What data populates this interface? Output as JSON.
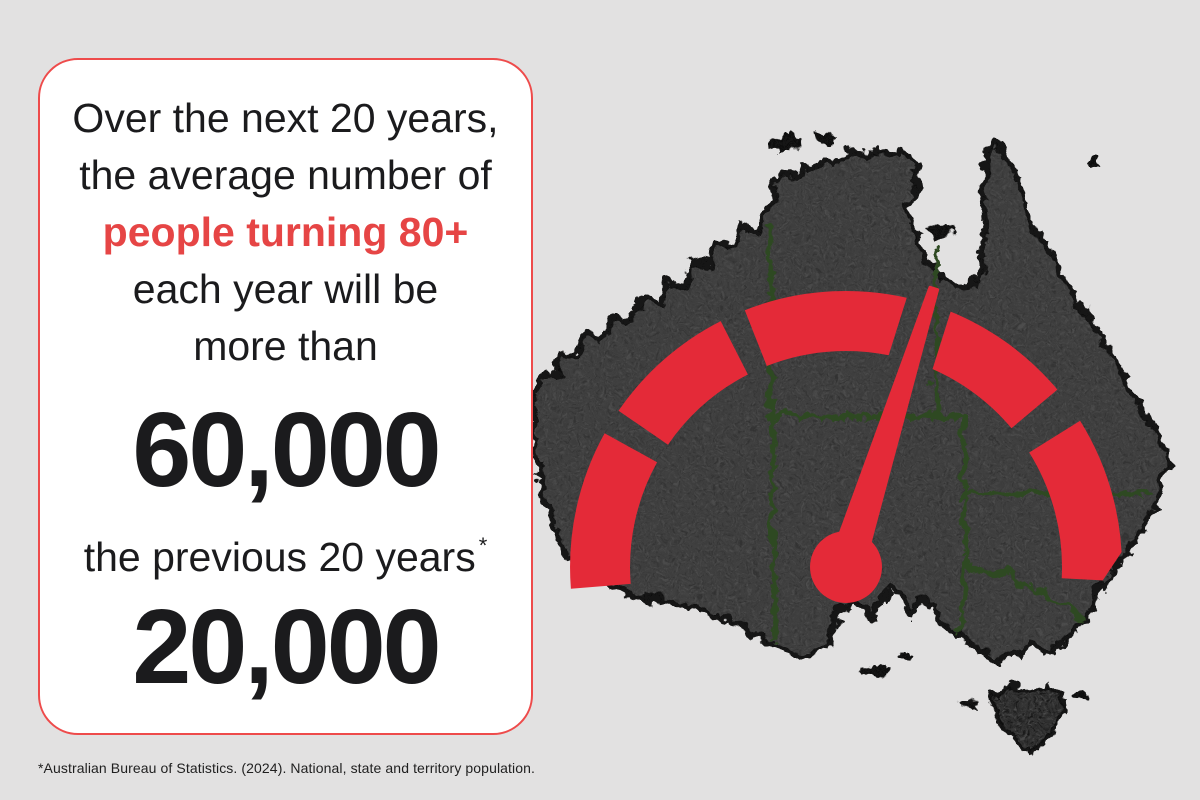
{
  "colors": {
    "background": "#e2e1e1",
    "card_bg": "#ffffff",
    "card_border_red": "#ee4b4b",
    "text_red": "#e64545",
    "gauge_red": "#e42a38",
    "map_fill": "#4e4e4e",
    "map_edge": "#161616",
    "state_border_green": "#2e4a22",
    "text_dark": "#1b1b1d"
  },
  "card": {
    "line1": "Over the next 20 years,",
    "line2": "the average number of",
    "line3": "people turning 80+",
    "line4": "each year will be",
    "line5": "more than",
    "value_next20": "60,000",
    "line_prev": "the previous 20 years",
    "asterisk": "*",
    "value_prev20": "20,000"
  },
  "footnote": "*Australian Bureau of Statistics. (2024). National, state and territory population.",
  "chart_data": {
    "type": "gauge",
    "title": "Average number of people turning 80+ each year in Australia",
    "categories": [
      "Next 20 years",
      "Previous 20 years"
    ],
    "series": [
      {
        "name": "Next 20 years",
        "label": "60,000",
        "value": 60000,
        "qualifier": "more than"
      },
      {
        "name": "Previous 20 years",
        "label": "20,000",
        "value": 20000
      }
    ],
    "backdrop": "australia-map-silhouette",
    "legend_position": "none",
    "gauge": {
      "segments_deg": [
        [
          151,
          184.5
        ],
        [
          117,
          145.5
        ],
        [
          74,
          111.5
        ],
        [
          40,
          70
        ],
        [
          -3,
          32
        ]
      ],
      "needle_angle_deg": 72.5
    }
  }
}
